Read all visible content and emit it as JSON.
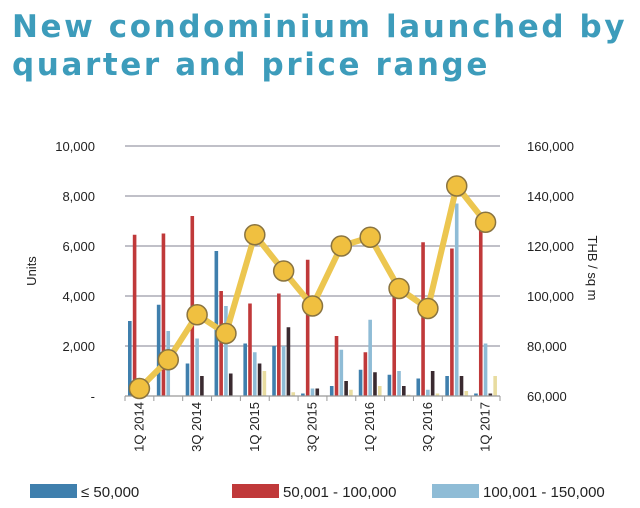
{
  "chart_data": {
    "type": "bar",
    "title_lines": [
      "New condominium launched by",
      "quarter and price range"
    ],
    "categories": [
      "1Q 2014",
      "",
      "3Q 2014",
      "",
      "1Q 2015",
      "",
      "3Q 2015",
      "",
      "1Q 2016",
      "",
      "3Q 2016",
      "",
      "1Q 2017"
    ],
    "ylabel": "Units",
    "ylabel_right": "THB / sq m",
    "ylim": [
      0,
      10000
    ],
    "ylim_right": [
      60000,
      160000
    ],
    "yticks": [
      "-",
      "2,000",
      "4,000",
      "6,000",
      "8,000",
      "10,000"
    ],
    "yticks_right": [
      "60,000",
      "80,000",
      "100,000",
      "120,000",
      "140,000",
      "160,000"
    ],
    "grid": true,
    "legend_position": "bottom",
    "series": [
      {
        "name": "≤ 50,000",
        "color": "#3f7fad",
        "values": [
          3000,
          3650,
          1300,
          5800,
          2100,
          2000,
          100,
          400,
          1050,
          850,
          700,
          800,
          100
        ]
      },
      {
        "name": "50,001 - 100,000",
        "color": "#c0393a",
        "values": [
          6450,
          6500,
          7200,
          4200,
          3700,
          4100,
          5450,
          2400,
          1750,
          4100,
          6150,
          5900,
          6900
        ]
      },
      {
        "name": "100,001 - 150,000",
        "color": "#8fbcd6",
        "values": [
          0,
          2600,
          2300,
          3600,
          1750,
          2000,
          300,
          1850,
          3050,
          1000,
          250,
          7700,
          2100
        ]
      },
      {
        "color": "#3a2a30",
        "values": [
          0,
          0,
          800,
          900,
          1300,
          2750,
          300,
          600,
          950,
          400,
          1000,
          800,
          100
        ]
      },
      {
        "color": "#e8dca0",
        "values": [
          0,
          0,
          0,
          0,
          1000,
          150,
          0,
          250,
          400,
          50,
          100,
          200,
          800
        ]
      }
    ],
    "line_series": {
      "color": "#f0c040",
      "axis": "right",
      "values": [
        63000,
        74500,
        92500,
        85000,
        124500,
        110000,
        96000,
        120000,
        123500,
        103000,
        95000,
        144000,
        129500
      ]
    }
  }
}
